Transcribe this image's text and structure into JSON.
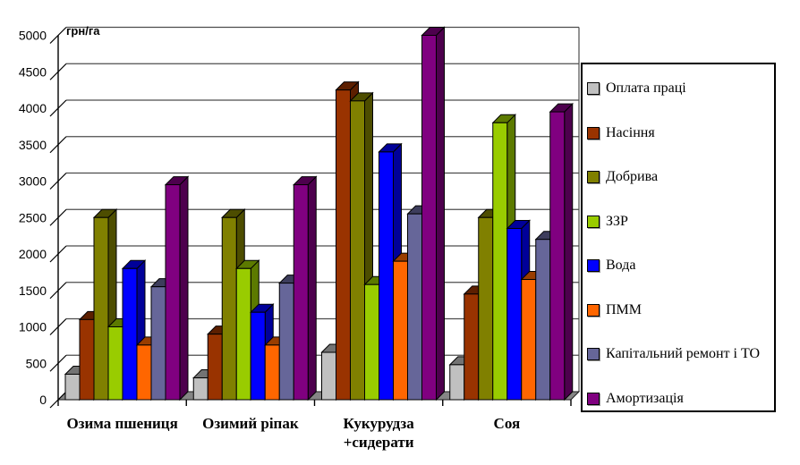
{
  "chart_data": {
    "type": "bar",
    "style": "3d-column",
    "title": "",
    "unit_label": "грн/га",
    "categories": [
      "Озима пшениця",
      "Озимий ріпак",
      "Кукурудза +сидерати",
      "Соя"
    ],
    "category_display_lines": [
      [
        "Озима пшениця"
      ],
      [
        "Озимий ріпак"
      ],
      [
        "Кукурудза",
        "+сидерати"
      ],
      [
        "Соя"
      ]
    ],
    "series": [
      {
        "name": "Оплата праці",
        "color": "#C0C0C0",
        "values": [
          350,
          300,
          650,
          480
        ]
      },
      {
        "name": "Насіння",
        "color": "#993300",
        "values": [
          1100,
          900,
          4250,
          1450
        ]
      },
      {
        "name": "Добрива",
        "color": "#808000",
        "values": [
          2500,
          2500,
          4100,
          2500
        ]
      },
      {
        "name": "ЗЗР",
        "color": "#99CC00",
        "values": [
          1000,
          1800,
          1580,
          3800
        ]
      },
      {
        "name": "Вода",
        "color": "#0000FF",
        "values": [
          1800,
          1200,
          3400,
          2350
        ]
      },
      {
        "name": "ПММ",
        "color": "#FF6600",
        "values": [
          750,
          750,
          1900,
          1650
        ]
      },
      {
        "name": "Капітальний ремонт і ТО",
        "color": "#666699",
        "values": [
          1550,
          1600,
          2550,
          2200
        ]
      },
      {
        "name": "Амортизація",
        "color": "#800080",
        "values": [
          2950,
          2950,
          5000,
          3950
        ]
      }
    ],
    "ylim": [
      0,
      5000
    ],
    "ytick_step": 500,
    "grid": true,
    "legend_position": "right",
    "floor_color": "#858585",
    "gridline_color": "#4d4d4d"
  }
}
